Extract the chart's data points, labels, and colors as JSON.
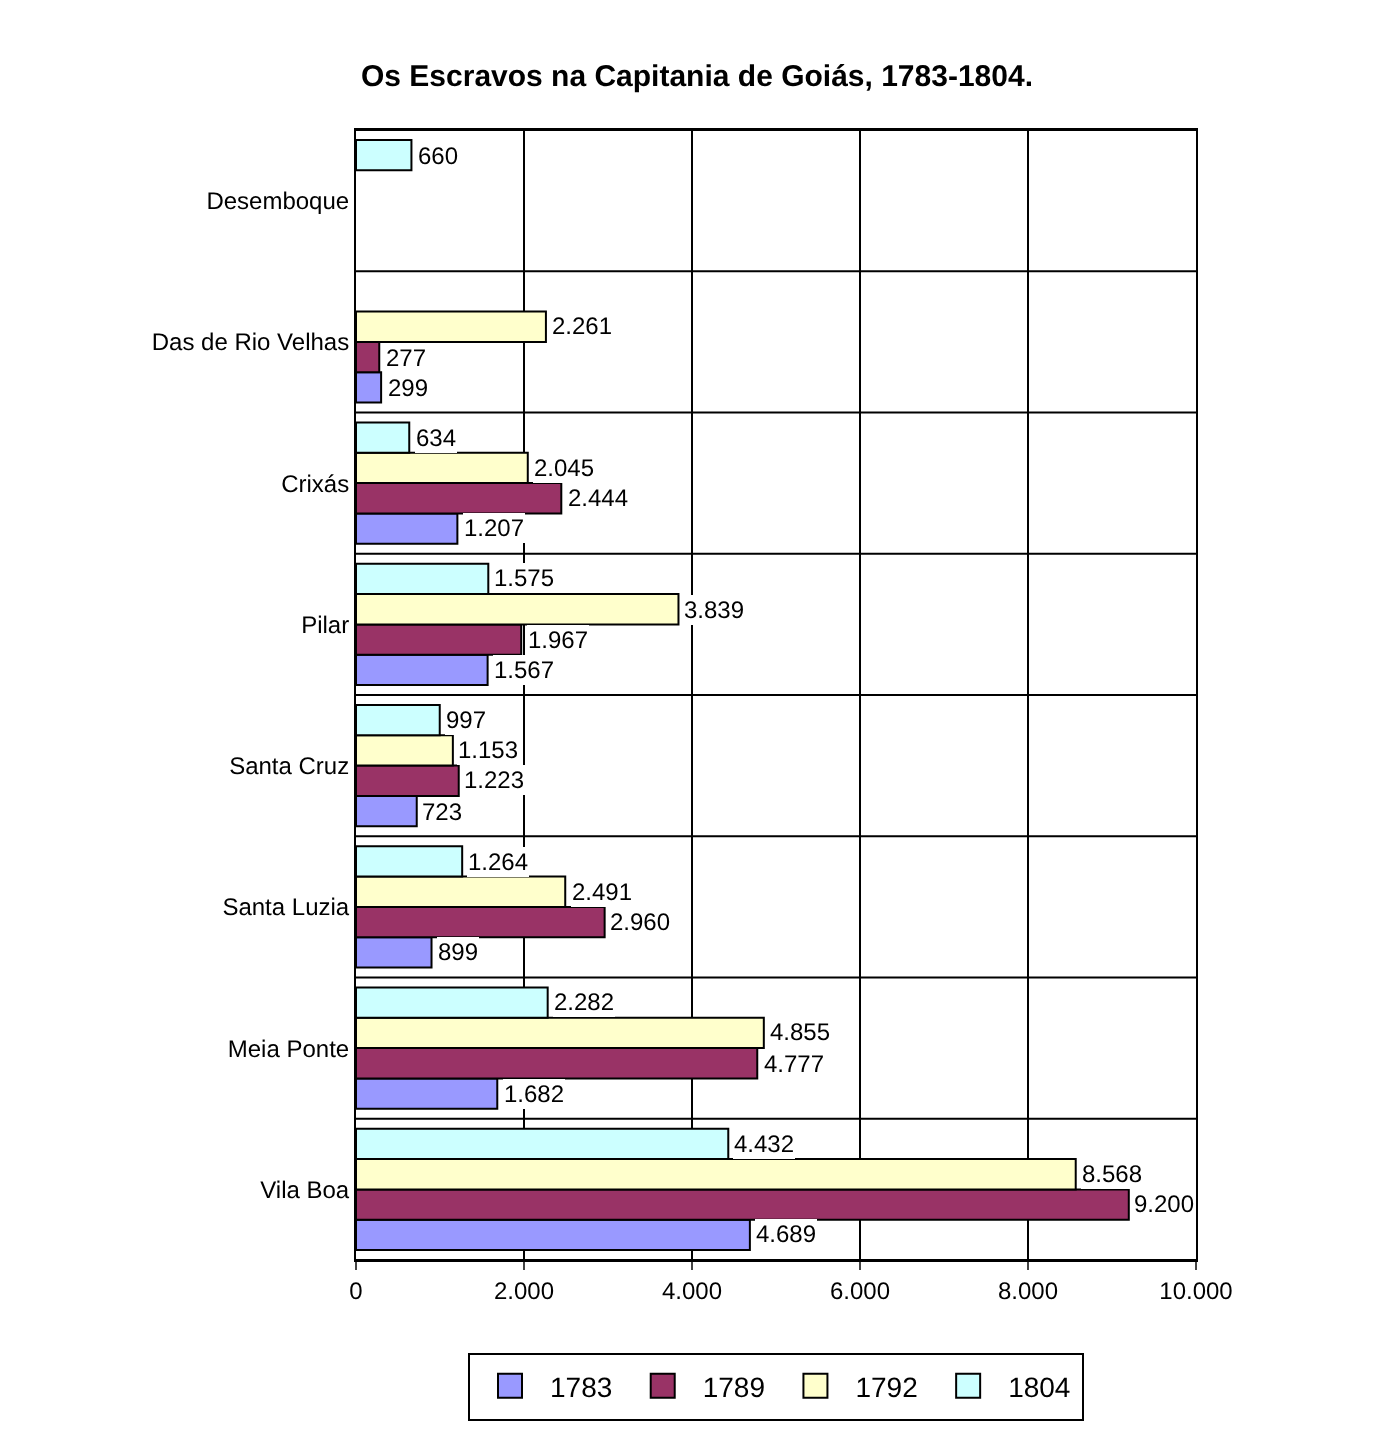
{
  "chart_data": {
    "type": "bar",
    "orientation": "horizontal",
    "title": "Os Escravos na Capitania de Goiás, 1783-1804.",
    "categories": [
      "Desemboque",
      "Das de Rio Velhas",
      "Crixás",
      "Pilar",
      "Santa Cruz",
      "Santa Luzia",
      "Meia Ponte",
      "Vila Boa"
    ],
    "series": [
      {
        "name": "1783",
        "color": "#9999ff",
        "values": [
          null,
          299,
          1207,
          1567,
          723,
          899,
          1682,
          4689
        ],
        "value_labels": [
          null,
          "299",
          "1.207",
          "1.567",
          "723",
          "899",
          "1.682",
          "4.689"
        ]
      },
      {
        "name": "1789",
        "color": "#993366",
        "values": [
          null,
          277,
          2444,
          1967,
          1223,
          2960,
          4777,
          9200
        ],
        "value_labels": [
          null,
          "277",
          "2.444",
          "1.967",
          "1.223",
          "2.960",
          "4.777",
          "9.200"
        ]
      },
      {
        "name": "1792",
        "color": "#ffffcc",
        "values": [
          null,
          2261,
          2045,
          3839,
          1153,
          2491,
          4855,
          8568
        ],
        "value_labels": [
          null,
          "2.261",
          "2.045",
          "3.839",
          "1.153",
          "2.491",
          "4.855",
          "8.568"
        ]
      },
      {
        "name": "1804",
        "color": "#ccffff",
        "values": [
          660,
          null,
          634,
          1575,
          997,
          1264,
          2282,
          4432
        ],
        "value_labels": [
          "660",
          null,
          "634",
          "1.575",
          "997",
          "1.264",
          "2.282",
          "4.432"
        ]
      }
    ],
    "xlim": [
      0,
      10000
    ],
    "xticks": [
      0,
      {
        "value": 2000,
        "label": "2.000"
      },
      {
        "value": 4000,
        "label": "4.000"
      },
      {
        "value": 6000,
        "label": "6.000"
      },
      {
        "value": 8000,
        "label": "8.000"
      },
      {
        "value": 10000,
        "label": "10.000"
      }
    ],
    "grid": true,
    "legend": "bottom"
  }
}
